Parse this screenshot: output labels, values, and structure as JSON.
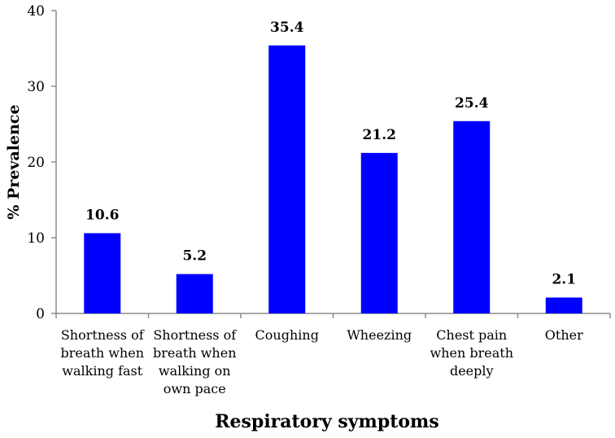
{
  "chart_data": {
    "type": "bar",
    "categories": [
      [
        "Shortness of",
        "breath when",
        "walking fast"
      ],
      [
        "Shortness of",
        "breath when",
        "walking on",
        "own pace"
      ],
      [
        "Coughing"
      ],
      [
        "Wheezing"
      ],
      [
        "Chest pain",
        "when breath",
        "deeply"
      ],
      [
        "Other"
      ]
    ],
    "values": [
      10.6,
      5.2,
      35.4,
      21.2,
      25.4,
      2.1
    ],
    "value_labels": [
      "10.6",
      "5.2",
      "35.4",
      "21.2",
      "25.4",
      "2.1"
    ],
    "title": "",
    "xlabel": "Respiratory symptoms",
    "ylabel": "% Prevalence",
    "ylim": [
      0,
      40
    ],
    "yticks": [
      0,
      10,
      20,
      30,
      40
    ],
    "bar_color": "#0000ff",
    "grid": false
  }
}
